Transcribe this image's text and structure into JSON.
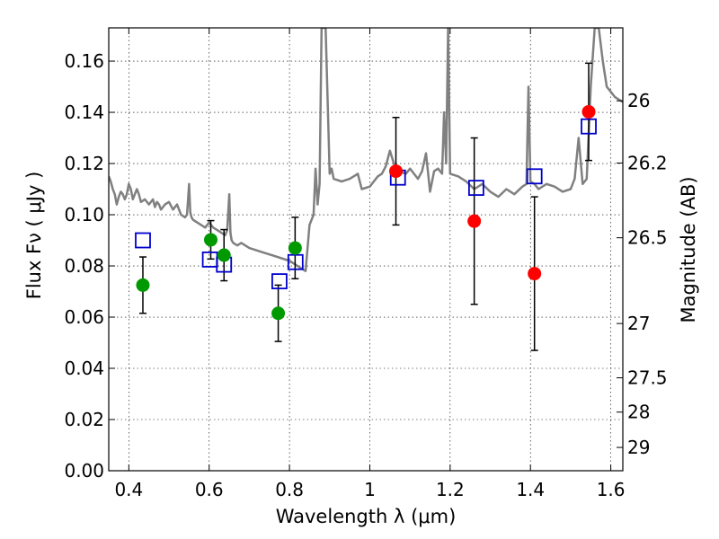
{
  "chart_data": {
    "type": "scatter",
    "xlabel": "Wavelength  λ (μm)",
    "ylabel": "Flux  Fν  ( μJy )",
    "y2label": "Magnitude (AB)",
    "xlim": [
      0.35,
      1.63
    ],
    "ylim": [
      0.0,
      0.173
    ],
    "grid": true,
    "x_ticks": [
      0.4,
      0.6,
      0.8,
      1.0,
      1.2,
      1.4,
      1.6
    ],
    "x_tick_labels": [
      "0.4",
      "0.6",
      "0.8",
      "1",
      "1.2",
      "1.4",
      "1.6"
    ],
    "y_ticks": [
      0.0,
      0.02,
      0.04,
      0.06,
      0.08,
      0.1,
      0.12,
      0.14,
      0.16
    ],
    "y_tick_labels": [
      "0.00",
      "0.02",
      "0.04",
      "0.06",
      "0.08",
      "0.10",
      "0.12",
      "0.14",
      "0.16"
    ],
    "y2_ticks": [
      {
        "flux": 0.1445,
        "label": "26"
      },
      {
        "flux": 0.1202,
        "label": "26.2"
      },
      {
        "flux": 0.091,
        "label": "26.5"
      },
      {
        "flux": 0.0575,
        "label": "27"
      },
      {
        "flux": 0.0363,
        "label": "27.5"
      },
      {
        "flux": 0.0229,
        "label": "28"
      },
      {
        "flux": 0.0091,
        "label": "29"
      }
    ],
    "series": [
      {
        "kind": "model_spectrum",
        "color": "#808080",
        "x": [
          0.35,
          0.355,
          0.36,
          0.365,
          0.37,
          0.375,
          0.38,
          0.385,
          0.39,
          0.395,
          0.4,
          0.405,
          0.41,
          0.415,
          0.42,
          0.425,
          0.43,
          0.44,
          0.45,
          0.46,
          0.465,
          0.47,
          0.475,
          0.48,
          0.49,
          0.5,
          0.51,
          0.52,
          0.53,
          0.54,
          0.545,
          0.55,
          0.553,
          0.556,
          0.56,
          0.57,
          0.58,
          0.59,
          0.6,
          0.61,
          0.62,
          0.63,
          0.64,
          0.645,
          0.65,
          0.653,
          0.656,
          0.66,
          0.67,
          0.68,
          0.7,
          0.72,
          0.74,
          0.76,
          0.78,
          0.8,
          0.81,
          0.82,
          0.83,
          0.84,
          0.85,
          0.86,
          0.865,
          0.87,
          0.875,
          0.88,
          0.885,
          0.89,
          0.9,
          0.905,
          0.91,
          0.93,
          0.95,
          0.96,
          0.97,
          0.98,
          1.0,
          1.01,
          1.02,
          1.03,
          1.04,
          1.05,
          1.06,
          1.07,
          1.09,
          1.1,
          1.11,
          1.12,
          1.13,
          1.14,
          1.15,
          1.16,
          1.17,
          1.18,
          1.185,
          1.19,
          1.195,
          1.2,
          1.22,
          1.24,
          1.26,
          1.28,
          1.3,
          1.32,
          1.34,
          1.36,
          1.38,
          1.39,
          1.395,
          1.4,
          1.41,
          1.42,
          1.44,
          1.46,
          1.48,
          1.5,
          1.51,
          1.52,
          1.53,
          1.54,
          1.55,
          1.56,
          1.57,
          1.58,
          1.59,
          1.6,
          1.61,
          1.62,
          1.63
        ],
        "y": [
          0.115,
          0.113,
          0.11,
          0.108,
          0.104,
          0.107,
          0.109,
          0.108,
          0.106,
          0.108,
          0.112,
          0.11,
          0.106,
          0.108,
          0.11,
          0.108,
          0.105,
          0.106,
          0.104,
          0.106,
          0.103,
          0.105,
          0.104,
          0.102,
          0.104,
          0.105,
          0.102,
          0.104,
          0.1,
          0.099,
          0.1,
          0.112,
          0.101,
          0.099,
          0.098,
          0.097,
          0.096,
          0.095,
          0.097,
          0.095,
          0.094,
          0.093,
          0.092,
          0.094,
          0.108,
          0.093,
          0.09,
          0.089,
          0.088,
          0.089,
          0.087,
          0.086,
          0.085,
          0.084,
          0.083,
          0.082,
          0.081,
          0.08,
          0.079,
          0.078,
          0.096,
          0.1,
          0.118,
          0.104,
          0.112,
          0.173,
          0.173,
          0.173,
          0.116,
          0.118,
          0.114,
          0.113,
          0.114,
          0.115,
          0.116,
          0.11,
          0.111,
          0.113,
          0.115,
          0.116,
          0.119,
          0.125,
          0.12,
          0.117,
          0.116,
          0.118,
          0.116,
          0.114,
          0.117,
          0.124,
          0.109,
          0.117,
          0.118,
          0.116,
          0.14,
          0.12,
          0.173,
          0.116,
          0.115,
          0.113,
          0.11,
          0.112,
          0.109,
          0.107,
          0.11,
          0.108,
          0.111,
          0.112,
          0.15,
          0.113,
          0.112,
          0.11,
          0.112,
          0.111,
          0.109,
          0.11,
          0.114,
          0.13,
          0.112,
          0.114,
          0.15,
          0.173,
          0.173,
          0.16,
          0.15,
          0.148,
          0.146,
          0.145,
          0.144
        ]
      },
      {
        "kind": "model_photometry",
        "marker": "open-square",
        "color": "#0000cc",
        "x": [
          0.435,
          0.602,
          0.637,
          0.775,
          0.815,
          1.07,
          1.265,
          1.41,
          1.545
        ],
        "y": [
          0.09,
          0.0825,
          0.0805,
          0.074,
          0.0815,
          0.1145,
          0.1105,
          0.115,
          0.1345
        ]
      },
      {
        "kind": "observed_optical",
        "marker": "filled-circle",
        "color": "#009900",
        "x": [
          0.435,
          0.604,
          0.637,
          0.772,
          0.814
        ],
        "y": [
          0.0725,
          0.0902,
          0.0842,
          0.0615,
          0.087
        ],
        "yerr": [
          0.011,
          0.0075,
          0.01,
          0.011,
          0.012
        ]
      },
      {
        "kind": "observed_nir",
        "marker": "filled-circle",
        "color": "#ff0000",
        "x": [
          1.065,
          1.26,
          1.41,
          1.545
        ],
        "y": [
          0.117,
          0.0975,
          0.077,
          0.1402
        ],
        "yerr": [
          0.021,
          0.0325,
          0.03,
          0.019
        ]
      }
    ]
  }
}
